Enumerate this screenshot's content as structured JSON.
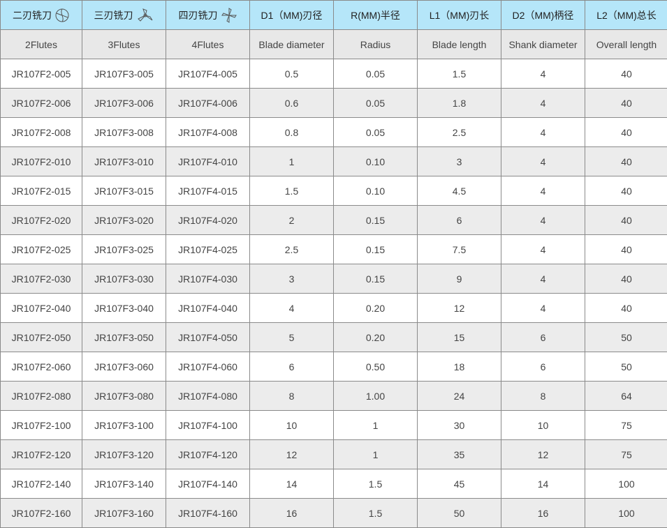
{
  "header": [
    {
      "label": "二刃铣刀",
      "icon": "two-flute-cutter-icon"
    },
    {
      "label": "三刃铣刀",
      "icon": "three-flute-cutter-icon"
    },
    {
      "label": "四刃铣刀",
      "icon": "four-flute-cutter-icon"
    },
    {
      "label": "D1（MM)刃径"
    },
    {
      "label": "R(MM)半径"
    },
    {
      "label": "L1（MM)刃长"
    },
    {
      "label": "D2（MM)柄径"
    },
    {
      "label": "L2（MM)总长"
    }
  ],
  "subheader": [
    "2Flutes",
    "3Flutes",
    "4Flutes",
    "Blade diameter",
    "Radius",
    "Blade length",
    "Shank diameter",
    "Overall length"
  ],
  "rows": [
    [
      "JR107F2-005",
      "JR107F3-005",
      "JR107F4-005",
      "0.5",
      "0.05",
      "1.5",
      "4",
      "40"
    ],
    [
      "JR107F2-006",
      "JR107F3-006",
      "JR107F4-006",
      "0.6",
      "0.05",
      "1.8",
      "4",
      "40"
    ],
    [
      "JR107F2-008",
      "JR107F3-008",
      "JR107F4-008",
      "0.8",
      "0.05",
      "2.5",
      "4",
      "40"
    ],
    [
      "JR107F2-010",
      "JR107F3-010",
      "JR107F4-010",
      "1",
      "0.10",
      "3",
      "4",
      "40"
    ],
    [
      "JR107F2-015",
      "JR107F3-015",
      "JR107F4-015",
      "1.5",
      "0.10",
      "4.5",
      "4",
      "40"
    ],
    [
      "JR107F2-020",
      "JR107F3-020",
      "JR107F4-020",
      "2",
      "0.15",
      "6",
      "4",
      "40"
    ],
    [
      "JR107F2-025",
      "JR107F3-025",
      "JR107F4-025",
      "2.5",
      "0.15",
      "7.5",
      "4",
      "40"
    ],
    [
      "JR107F2-030",
      "JR107F3-030",
      "JR107F4-030",
      "3",
      "0.15",
      "9",
      "4",
      "40"
    ],
    [
      "JR107F2-040",
      "JR107F3-040",
      "JR107F4-040",
      "4",
      "0.20",
      "12",
      "4",
      "40"
    ],
    [
      "JR107F2-050",
      "JR107F3-050",
      "JR107F4-050",
      "5",
      "0.20",
      "15",
      "6",
      "50"
    ],
    [
      "JR107F2-060",
      "JR107F3-060",
      "JR107F4-060",
      "6",
      "0.50",
      "18",
      "6",
      "50"
    ],
    [
      "JR107F2-080",
      "JR107F3-080",
      "JR107F4-080",
      "8",
      "1.00",
      "24",
      "8",
      "64"
    ],
    [
      "JR107F2-100",
      "JR107F3-100",
      "JR107F4-100",
      "10",
      "1",
      "30",
      "10",
      "75"
    ],
    [
      "JR107F2-120",
      "JR107F3-120",
      "JR107F4-120",
      "12",
      "1",
      "35",
      "12",
      "75"
    ],
    [
      "JR107F2-140",
      "JR107F3-140",
      "JR107F4-140",
      "14",
      "1.5",
      "45",
      "14",
      "100"
    ],
    [
      "JR107F2-160",
      "JR107F3-160",
      "JR107F4-160",
      "16",
      "1.5",
      "50",
      "16",
      "100"
    ]
  ],
  "colors": {
    "header_bg": "#b5e6f9",
    "alt_row_bg": "#ececec",
    "border": "#8a8a8a"
  }
}
